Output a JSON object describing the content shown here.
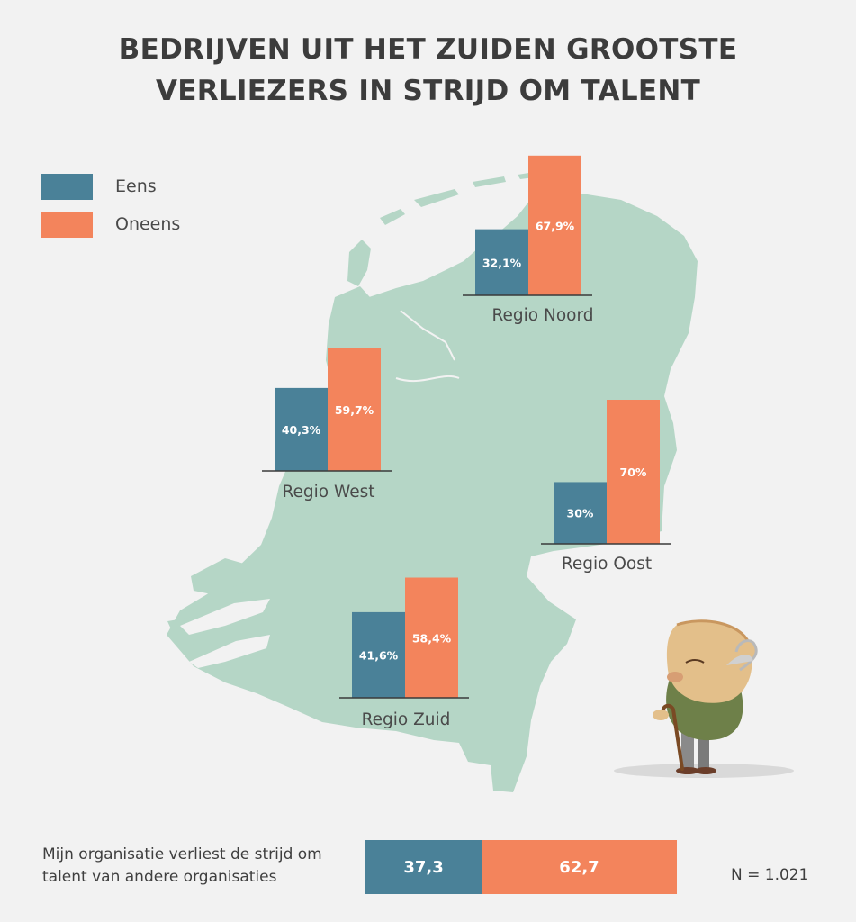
{
  "title": {
    "line1": "BEDRIJVEN UIT HET ZUIDEN GROOTSTE",
    "line2": "VERLIEZERS IN STRIJD OM TALENT"
  },
  "colors": {
    "eens": "#4a8198",
    "oneens": "#f3845c",
    "map": "#b5d6c6",
    "background": "#f2f2f2",
    "baseline": "#3a3a3a"
  },
  "legend": [
    {
      "label": "Eens",
      "color": "#4a8198"
    },
    {
      "label": "Oneens",
      "color": "#f3845c"
    }
  ],
  "chart_data": {
    "type": "bar",
    "title": "BEDRIJVEN UIT HET ZUIDEN GROOTSTE VERLIEZERS IN STRIJD OM TALENT",
    "categories": [
      "Regio Noord",
      "Regio West",
      "Regio Oost",
      "Regio Zuid"
    ],
    "series": [
      {
        "name": "Eens",
        "values": [
          32.1,
          40.3,
          30,
          41.6
        ],
        "labels": [
          "32,1%",
          "40,3%",
          "30%",
          "41,6%"
        ]
      },
      {
        "name": "Oneens",
        "values": [
          67.9,
          59.7,
          70,
          58.4
        ],
        "labels": [
          "67,9%",
          "59,7%",
          "70%",
          "58,4%"
        ]
      }
    ],
    "unit": "%",
    "ylim": [
      0,
      70
    ],
    "grid": false,
    "legend_position": "top-left"
  },
  "regions": [
    {
      "label": "Regio Noord",
      "eens": "32,1%",
      "oneens": "67,9%"
    },
    {
      "label": "Regio West",
      "eens": "40,3%",
      "oneens": "59,7%"
    },
    {
      "label": "Regio Oost",
      "eens": "30%",
      "oneens": "70%"
    },
    {
      "label": "Regio Zuid",
      "eens": "41,6%",
      "oneens": "58,4%"
    }
  ],
  "total": {
    "statement": "Mijn organisatie verliest de strijd om talent van andere organisaties",
    "eens": 37.3,
    "oneens": 62.7,
    "eens_label": "37,3",
    "oneens_label": "62,7"
  },
  "sample_size": "N = 1.021",
  "illustration": "old-man-with-cane"
}
